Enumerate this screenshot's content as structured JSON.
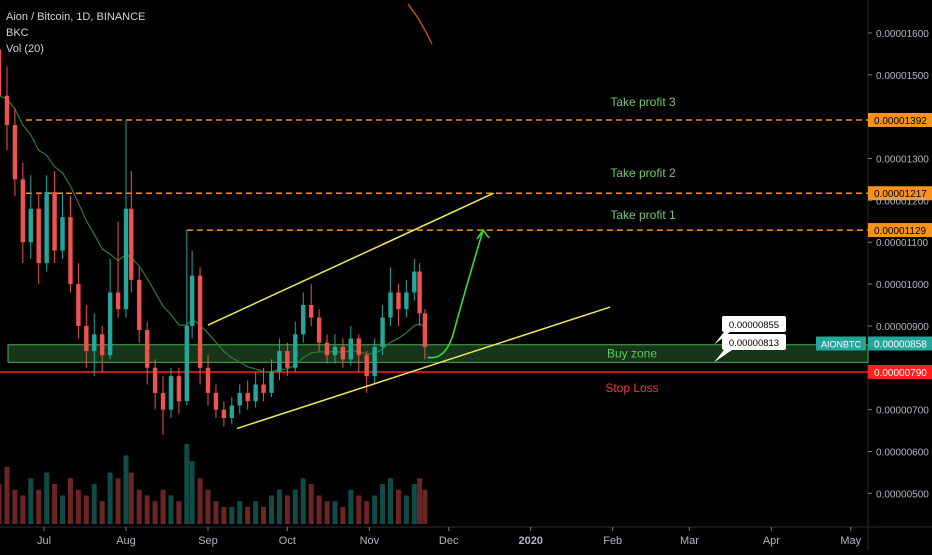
{
  "legend": {
    "symbol_line": "Aion / Bitcoin, 1D, BINANCE",
    "indicator_1": "BKC",
    "indicator_2": "Vol (20)"
  },
  "chart_data": {
    "type": "candlestick",
    "symbol": "AIONBTC",
    "interval": "1D",
    "exchange": "BINANCE",
    "ylim": [
      4.65e-06,
      1.65e-05
    ],
    "y_ticks": [
      "0.00001600",
      "0.00001500",
      "0.00001300",
      "0.00001200",
      "0.00001100",
      "0.00001000",
      "0.00000900",
      "0.00000700",
      "0.00000600",
      "0.00000500"
    ],
    "x_ticks": [
      "Jul",
      "Aug",
      "Sep",
      "Oct",
      "Nov",
      "Dec",
      "2020",
      "Feb",
      "Mar",
      "Apr",
      "May"
    ],
    "price_tag": {
      "label": "AIONBTC",
      "value": "0.00000858",
      "price": 8.58e-06
    },
    "levels": [
      {
        "name": "Take profit 3",
        "price": 1.392e-05,
        "label": "0.00001392",
        "style": "dashed",
        "color": "#f7931a"
      },
      {
        "name": "Take profit 2",
        "price": 1.217e-05,
        "label": "0.00001217",
        "style": "dashed",
        "color": "#f7931a"
      },
      {
        "name": "Take profit 1",
        "price": 1.129e-05,
        "label": "0.00001129",
        "style": "dashed",
        "color": "#f7931a"
      },
      {
        "name": "Stop Loss",
        "price": 7.9e-06,
        "label": "0.00000790",
        "style": "solid",
        "color": "#ff1f1f"
      }
    ],
    "zone": {
      "name": "Buy zone",
      "from": 8.13e-06,
      "to": 8.55e-06,
      "upper_label": "0.00000855",
      "lower_label": "0.00000813"
    },
    "colors": {
      "up": "#26a69a",
      "down": "#ef5350",
      "channel": "#f2e85c",
      "projection": "#33dd33",
      "ma": "#2e7d32",
      "zone_text": "#5bc85b",
      "tp_text": "#7cc576",
      "sl_text": "#ef3b3b"
    },
    "channel": {
      "upper": [
        {
          "date": "2019-09-01",
          "price": 9.02e-06
        },
        {
          "date": "2019-12-18",
          "price": 1.217e-05
        }
      ],
      "lower": [
        {
          "date": "2019-09-12",
          "price": 6.55e-06
        },
        {
          "date": "2020-01-31",
          "price": 9.45e-06
        }
      ]
    },
    "projection": [
      {
        "date": "2019-11-23",
        "price": 8.25e-06
      },
      {
        "date": "2019-11-30",
        "price": 8.4e-06
      },
      {
        "date": "2019-12-08",
        "price": 9.6e-06
      },
      {
        "date": "2019-12-14",
        "price": 1.129e-05
      }
    ],
    "candles": [
      {
        "date": "2019-06-14",
        "open": 1.56e-05,
        "close": 1.45e-05,
        "high": 1.62e-05,
        "low": 1.4e-05,
        "volume": 7
      },
      {
        "date": "2019-06-17",
        "open": 1.45e-05,
        "close": 1.38e-05,
        "high": 1.52e-05,
        "low": 1.32e-05,
        "volume": 10
      },
      {
        "date": "2019-06-20",
        "open": 1.38e-05,
        "close": 1.25e-05,
        "high": 1.42e-05,
        "low": 1.21e-05,
        "volume": 6
      },
      {
        "date": "2019-06-23",
        "open": 1.25e-05,
        "close": 1.1e-05,
        "high": 1.29e-05,
        "low": 1.05e-05,
        "volume": 5
      },
      {
        "date": "2019-06-26",
        "open": 1.1e-05,
        "close": 1.18e-05,
        "high": 1.26e-05,
        "low": 1.06e-05,
        "volume": 8
      },
      {
        "date": "2019-06-29",
        "open": 1.18e-05,
        "close": 1.05e-05,
        "high": 1.22e-05,
        "low": 1e-05,
        "volume": 6
      },
      {
        "date": "2019-07-02",
        "open": 1.05e-05,
        "close": 1.22e-05,
        "high": 1.26e-05,
        "low": 1.03e-05,
        "volume": 9
      },
      {
        "date": "2019-07-05",
        "open": 1.22e-05,
        "close": 1.08e-05,
        "high": 1.27e-05,
        "low": 1.05e-05,
        "volume": 7
      },
      {
        "date": "2019-07-08",
        "open": 1.08e-05,
        "close": 1.16e-05,
        "high": 1.22e-05,
        "low": 1.06e-05,
        "volume": 5
      },
      {
        "date": "2019-07-11",
        "open": 1.16e-05,
        "close": 1e-05,
        "high": 1.21e-05,
        "low": 9.8e-06,
        "volume": 8
      },
      {
        "date": "2019-07-14",
        "open": 1e-05,
        "close": 9e-06,
        "high": 1.05e-05,
        "low": 8.7e-06,
        "volume": 6
      },
      {
        "date": "2019-07-17",
        "open": 9e-06,
        "close": 8.4e-06,
        "high": 9.5e-06,
        "low": 8e-06,
        "volume": 5
      },
      {
        "date": "2019-07-20",
        "open": 8.4e-06,
        "close": 8.8e-06,
        "high": 9.3e-06,
        "low": 7.8e-06,
        "volume": 7
      },
      {
        "date": "2019-07-23",
        "open": 8.8e-06,
        "close": 8.3e-06,
        "high": 9e-06,
        "low": 7.9e-06,
        "volume": 4
      },
      {
        "date": "2019-07-26",
        "open": 8.3e-06,
        "close": 9.8e-06,
        "high": 1.06e-05,
        "low": 8.2e-06,
        "volume": 9
      },
      {
        "date": "2019-07-29",
        "open": 9.8e-06,
        "close": 9.4e-06,
        "high": 1.15e-05,
        "low": 9.2e-06,
        "volume": 8
      },
      {
        "date": "2019-08-01",
        "open": 9.4e-06,
        "close": 1.18e-05,
        "high": 1.39e-05,
        "low": 9.2e-06,
        "volume": 12
      },
      {
        "date": "2019-08-03",
        "open": 1.18e-05,
        "close": 1.01e-05,
        "high": 1.27e-05,
        "low": 9.8e-06,
        "volume": 9
      },
      {
        "date": "2019-08-06",
        "open": 1.01e-05,
        "close": 8.9e-06,
        "high": 1.04e-05,
        "low": 8.6e-06,
        "volume": 6
      },
      {
        "date": "2019-08-09",
        "open": 8.9e-06,
        "close": 8e-06,
        "high": 9.1e-06,
        "low": 7.6e-06,
        "volume": 5
      },
      {
        "date": "2019-08-12",
        "open": 8e-06,
        "close": 7.4e-06,
        "high": 8.2e-06,
        "low": 7e-06,
        "volume": 4
      },
      {
        "date": "2019-08-15",
        "open": 7.4e-06,
        "close": 7e-06,
        "high": 7.8e-06,
        "low": 6.4e-06,
        "volume": 6
      },
      {
        "date": "2019-08-18",
        "open": 7e-06,
        "close": 7.8e-06,
        "high": 8e-06,
        "low": 6.8e-06,
        "volume": 5
      },
      {
        "date": "2019-08-21",
        "open": 7.8e-06,
        "close": 7.2e-06,
        "high": 8e-06,
        "low": 6.9e-06,
        "volume": 4
      },
      {
        "date": "2019-08-24",
        "open": 7.2e-06,
        "close": 9e-06,
        "high": 1.13e-05,
        "low": 7.1e-06,
        "volume": 14
      },
      {
        "date": "2019-08-26",
        "open": 9e-06,
        "close": 1.02e-05,
        "high": 1.08e-05,
        "low": 8.7e-06,
        "volume": 11
      },
      {
        "date": "2019-08-29",
        "open": 1.02e-05,
        "close": 8e-06,
        "high": 1.04e-05,
        "low": 7.6e-06,
        "volume": 8
      },
      {
        "date": "2019-09-01",
        "open": 8e-06,
        "close": 7.4e-06,
        "high": 8.3e-06,
        "low": 7.1e-06,
        "volume": 6
      },
      {
        "date": "2019-09-04",
        "open": 7.4e-06,
        "close": 7e-06,
        "high": 7.6e-06,
        "low": 6.8e-06,
        "volume": 4
      },
      {
        "date": "2019-09-07",
        "open": 7e-06,
        "close": 6.8e-06,
        "high": 7.2e-06,
        "low": 6.6e-06,
        "volume": 3
      },
      {
        "date": "2019-09-10",
        "open": 6.8e-06,
        "close": 7.1e-06,
        "high": 7.3e-06,
        "low": 6.65e-06,
        "volume": 3
      },
      {
        "date": "2019-09-13",
        "open": 7.1e-06,
        "close": 7.4e-06,
        "high": 7.6e-06,
        "low": 6.9e-06,
        "volume": 4
      },
      {
        "date": "2019-09-16",
        "open": 7.4e-06,
        "close": 7.2e-06,
        "high": 7.7e-06,
        "low": 7e-06,
        "volume": 3
      },
      {
        "date": "2019-09-19",
        "open": 7.2e-06,
        "close": 7.6e-06,
        "high": 7.9e-06,
        "low": 7.05e-06,
        "volume": 4
      },
      {
        "date": "2019-09-22",
        "open": 7.6e-06,
        "close": 7.4e-06,
        "high": 8e-06,
        "low": 7.2e-06,
        "volume": 3
      },
      {
        "date": "2019-09-25",
        "open": 7.4e-06,
        "close": 7.9e-06,
        "high": 8.2e-06,
        "low": 7.3e-06,
        "volume": 5
      },
      {
        "date": "2019-09-28",
        "open": 7.9e-06,
        "close": 8.4e-06,
        "high": 8.7e-06,
        "low": 7.7e-06,
        "volume": 6
      },
      {
        "date": "2019-10-01",
        "open": 8.4e-06,
        "close": 8e-06,
        "high": 8.6e-06,
        "low": 7.8e-06,
        "volume": 5
      },
      {
        "date": "2019-10-04",
        "open": 8e-06,
        "close": 8.8e-06,
        "high": 9.1e-06,
        "low": 7.9e-06,
        "volume": 6
      },
      {
        "date": "2019-10-07",
        "open": 8.8e-06,
        "close": 9.5e-06,
        "high": 9.8e-06,
        "low": 8.6e-06,
        "volume": 8
      },
      {
        "date": "2019-10-10",
        "open": 9.5e-06,
        "close": 9.2e-06,
        "high": 1e-05,
        "low": 9e-06,
        "volume": 7
      },
      {
        "date": "2019-10-13",
        "open": 9.2e-06,
        "close": 8.6e-06,
        "high": 9.4e-06,
        "low": 8.4e-06,
        "volume": 5
      },
      {
        "date": "2019-10-16",
        "open": 8.6e-06,
        "close": 8.3e-06,
        "high": 8.8e-06,
        "low": 8.1e-06,
        "volume": 4
      },
      {
        "date": "2019-10-19",
        "open": 8.3e-06,
        "close": 8.5e-06,
        "high": 8.8e-06,
        "low": 8.1e-06,
        "volume": 4
      },
      {
        "date": "2019-10-22",
        "open": 8.5e-06,
        "close": 8.2e-06,
        "high": 8.7e-06,
        "low": 8e-06,
        "volume": 3
      },
      {
        "date": "2019-10-25",
        "open": 8.2e-06,
        "close": 8.7e-06,
        "high": 9e-06,
        "low": 8.05e-06,
        "volume": 6
      },
      {
        "date": "2019-10-28",
        "open": 8.7e-06,
        "close": 8.3e-06,
        "high": 8.8e-06,
        "low": 7.9e-06,
        "volume": 5
      },
      {
        "date": "2019-10-31",
        "open": 8.3e-06,
        "close": 7.8e-06,
        "high": 8.4e-06,
        "low": 7.4e-06,
        "volume": 4
      },
      {
        "date": "2019-11-03",
        "open": 7.8e-06,
        "close": 8.5e-06,
        "high": 8.7e-06,
        "low": 7.6e-06,
        "volume": 5
      },
      {
        "date": "2019-11-06",
        "open": 8.5e-06,
        "close": 9.2e-06,
        "high": 9.5e-06,
        "low": 8.3e-06,
        "volume": 7
      },
      {
        "date": "2019-11-09",
        "open": 9.2e-06,
        "close": 9.8e-06,
        "high": 1.04e-05,
        "low": 9e-06,
        "volume": 8
      },
      {
        "date": "2019-11-12",
        "open": 9.8e-06,
        "close": 9.4e-06,
        "high": 1e-05,
        "low": 9e-06,
        "volume": 6
      },
      {
        "date": "2019-11-15",
        "open": 9.4e-06,
        "close": 9.8e-06,
        "high": 1.01e-05,
        "low": 9.2e-06,
        "volume": 5
      },
      {
        "date": "2019-11-18",
        "open": 9.8e-06,
        "close": 1.03e-05,
        "high": 1.06e-05,
        "low": 9.6e-06,
        "volume": 7
      },
      {
        "date": "2019-11-20",
        "open": 1.03e-05,
        "close": 9.3e-06,
        "high": 1.05e-05,
        "low": 9e-06,
        "volume": 8
      },
      {
        "date": "2019-11-22",
        "open": 9.3e-06,
        "close": 8.5e-06,
        "high": 9.4e-06,
        "low": 8.2e-06,
        "volume": 6
      }
    ]
  },
  "annotations": {
    "tp3": "Take profit 3",
    "tp2": "Take profit 2",
    "tp1": "Take profit 1",
    "buy_zone": "Buy zone",
    "stop_loss": "Stop Loss",
    "callout_upper": "0.00000855",
    "callout_lower": "0.00000813"
  }
}
